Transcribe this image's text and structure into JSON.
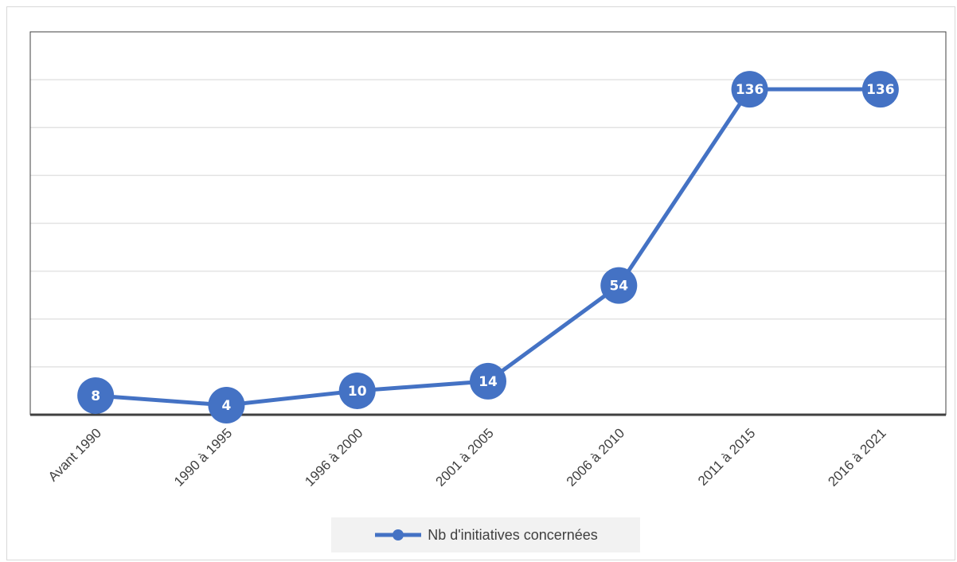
{
  "chart_data": {
    "type": "line",
    "categories": [
      "Avant 1990",
      "1990 à 1995",
      "1996 à 2000",
      "2001 à 2005",
      "2006 à 2010",
      "2011 à 2015",
      "2016 à 2021"
    ],
    "series": [
      {
        "name": "Nb d'initiatives concernées",
        "values": [
          8,
          4,
          10,
          14,
          54,
          136,
          136
        ],
        "color": "#4472c4"
      }
    ],
    "title": "",
    "xlabel": "",
    "ylabel": "",
    "ylim": [
      0,
      160
    ],
    "grid": true,
    "legend_position": "bottom",
    "data_labels": true
  }
}
